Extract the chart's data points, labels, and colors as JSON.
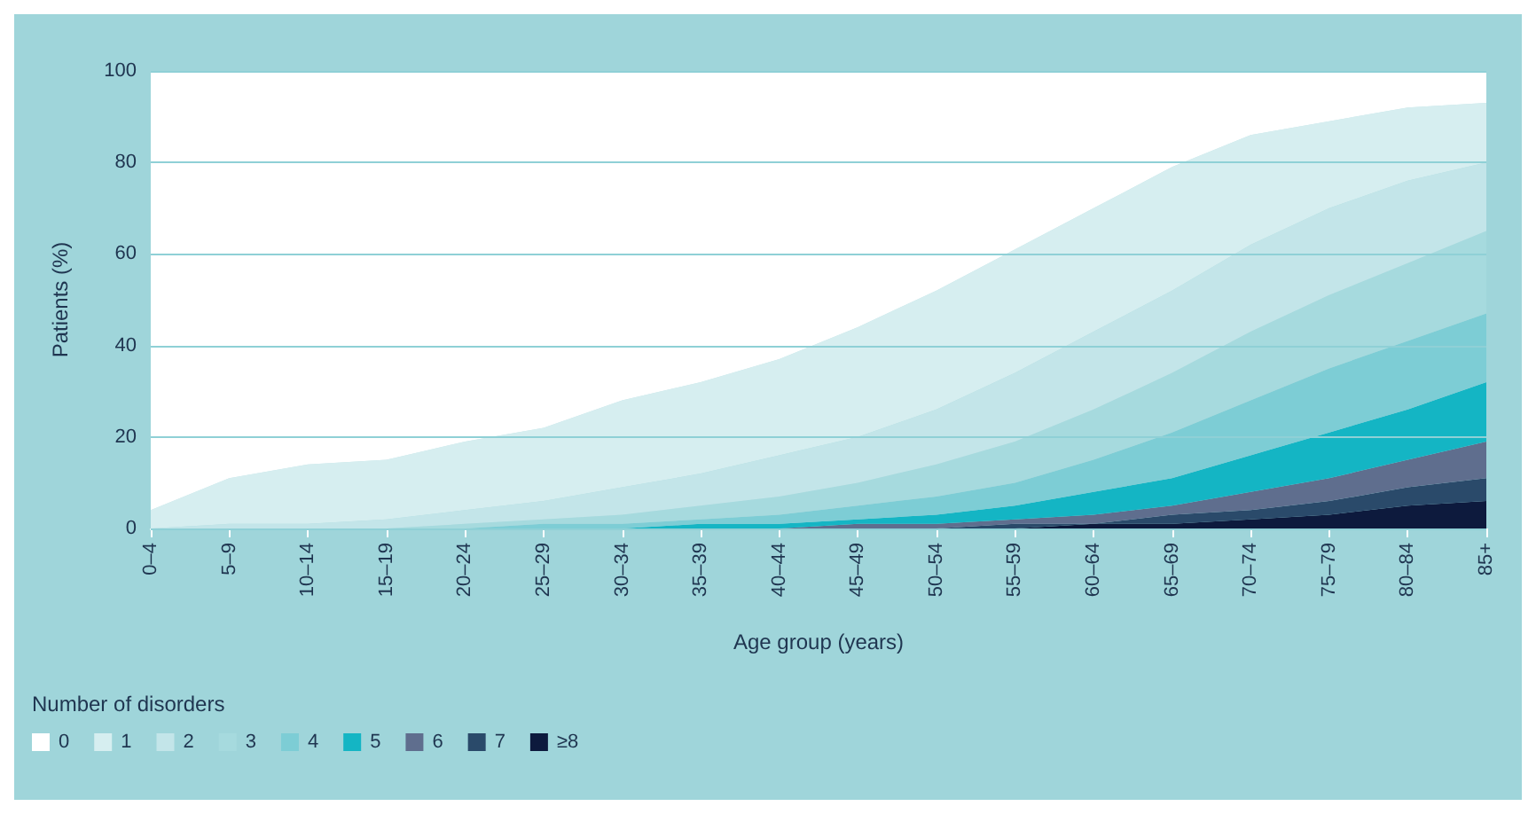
{
  "chart_data": {
    "type": "area",
    "stacked": true,
    "xlabel": "Age group (years)",
    "ylabel": "Patients (%)",
    "legend_title": "Number of disorders",
    "categories": [
      "0–4",
      "5–9",
      "10–14",
      "15–19",
      "20–24",
      "25–29",
      "30–34",
      "35–39",
      "40–44",
      "45–49",
      "50–54",
      "55–59",
      "60–64",
      "65–69",
      "70–74",
      "75–79",
      "80–84",
      "85+"
    ],
    "ylim": [
      0,
      100
    ],
    "yticks": [
      0,
      20,
      40,
      60,
      80,
      100
    ],
    "grid": "y",
    "legend": "bottom left",
    "series": [
      {
        "name": "≥8",
        "color": "#0d1a3d",
        "values": [
          0,
          0,
          0,
          0,
          0,
          0,
          0,
          0,
          0,
          0,
          0,
          0,
          1,
          1,
          2,
          3,
          5,
          6
        ]
      },
      {
        "name": "7",
        "color": "#2a4a6a",
        "values": [
          0,
          0,
          0,
          0,
          0,
          0,
          0,
          0,
          0,
          0,
          0,
          1,
          0,
          2,
          2,
          3,
          4,
          5
        ]
      },
      {
        "name": "6",
        "color": "#5f6e8e",
        "values": [
          0,
          0,
          0,
          0,
          0,
          0,
          0,
          0,
          0,
          1,
          1,
          1,
          2,
          2,
          4,
          5,
          6,
          8
        ]
      },
      {
        "name": "5",
        "color": "#14b5c4",
        "values": [
          0,
          0,
          0,
          0,
          0,
          0,
          0,
          1,
          1,
          1,
          2,
          3,
          5,
          6,
          8,
          10,
          11,
          13
        ]
      },
      {
        "name": "4",
        "color": "#7dcdd5",
        "values": [
          0,
          0,
          0,
          0,
          0,
          1,
          1,
          1,
          2,
          3,
          4,
          5,
          7,
          10,
          12,
          14,
          15,
          15
        ]
      },
      {
        "name": "3",
        "color": "#a6dade",
        "values": [
          0,
          0,
          0,
          0,
          1,
          1,
          2,
          3,
          4,
          5,
          7,
          9,
          11,
          13,
          15,
          16,
          17,
          18
        ]
      },
      {
        "name": "2",
        "color": "#c3e5e9",
        "values": [
          0,
          1,
          1,
          2,
          3,
          4,
          6,
          7,
          9,
          10,
          12,
          15,
          17,
          18,
          19,
          19,
          18,
          15
        ]
      },
      {
        "name": "1",
        "color": "#d6eef0",
        "values": [
          4,
          10,
          13,
          13,
          15,
          16,
          19,
          20,
          21,
          24,
          26,
          27,
          27,
          27,
          24,
          19,
          16,
          13
        ]
      },
      {
        "name": "0",
        "color": "#ffffff",
        "values": [
          96,
          89,
          86,
          85,
          81,
          78,
          72,
          68,
          63,
          56,
          48,
          39,
          30,
          21,
          14,
          11,
          8,
          7
        ]
      }
    ]
  }
}
